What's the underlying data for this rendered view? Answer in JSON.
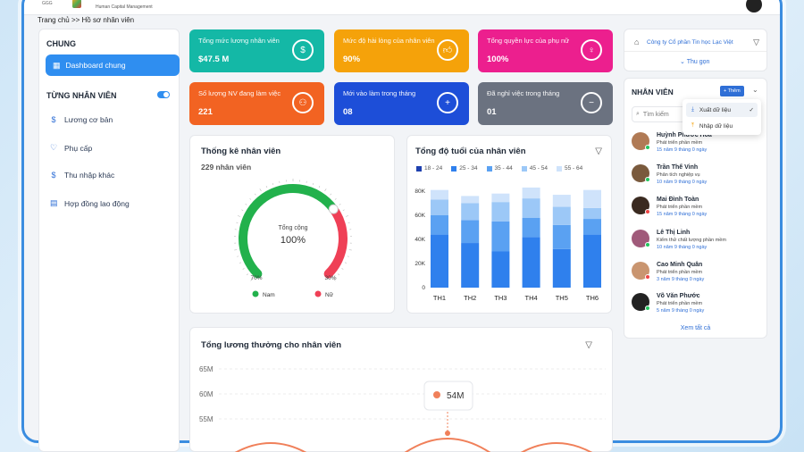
{
  "app": {
    "logo_small": "GGG",
    "logo_sub": "Human Capital Management"
  },
  "breadcrumb": "Trang chủ >> Hồ sơ nhân viên",
  "sidebar": {
    "section1": "CHUNG",
    "dashboard": "Dashboard chung",
    "section2": "TỪNG NHÂN VIÊN",
    "items": [
      {
        "label": "Lương cơ bản",
        "icon": "dollar-icon"
      },
      {
        "label": "Phụ cấp",
        "icon": "heart-icon"
      },
      {
        "label": "Thu nhập khác",
        "icon": "dollar-icon"
      },
      {
        "label": "Hợp đồng lao động",
        "icon": "document-icon"
      }
    ]
  },
  "cards": [
    {
      "label": "Tổng mức lương nhân viên",
      "value": "$47.5 M",
      "color": "#14b8a6",
      "icon": "dollar-circle-icon"
    },
    {
      "label": "Mức độ hài lòng của nhân viên",
      "value": "90%",
      "color": "#f5a20a",
      "icon": "thumbs-up-icon"
    },
    {
      "label": "Tổng quyền lực của phụ nữ",
      "value": "100%",
      "color": "#ec1f8e",
      "icon": "woman-icon"
    },
    {
      "label": "Số lượng NV đang làm việc",
      "value": "221",
      "color": "#f26322",
      "icon": "group-icon"
    },
    {
      "label": "Mới vào làm trong tháng",
      "value": "08",
      "color": "#1d4ed8",
      "icon": "add-user-icon"
    },
    {
      "label": "Đã nghỉ việc trong tháng",
      "value": "01",
      "color": "#6b7280",
      "icon": "remove-user-icon"
    }
  ],
  "stats": {
    "title": "Thống kê nhân viên",
    "subtitle": "229 nhân viên",
    "center_label": "Tổng cộng",
    "center_value": "100%",
    "left_pct": "70%",
    "right_pct": "30%",
    "legend_male": "Nam",
    "legend_female": "Nữ",
    "male_color": "#22b14c",
    "female_color": "#ef4056",
    "male_fraction": 0.7
  },
  "age_chart": {
    "title": "Tổng độ tuổi của nhân viên",
    "legend": [
      "18 - 24",
      "25 - 34",
      "35 - 44",
      "45 - 54",
      "55 - 64"
    ],
    "colors": [
      "#1e40af",
      "#2f80ed",
      "#5aa1f2",
      "#9cc8f7",
      "#cfe3fb"
    ],
    "ticks": [
      "80K",
      "60K",
      "40K",
      "20K",
      "0"
    ]
  },
  "chart_data": {
    "type": "bar",
    "title": "Tổng độ tuổi của nhân viên",
    "categories": [
      "TH1",
      "TH2",
      "TH3",
      "TH4",
      "TH5",
      "TH6"
    ],
    "ylim": [
      0,
      80000
    ],
    "series": [
      {
        "name": "18 - 24",
        "values": [
          0,
          0,
          0,
          0,
          0,
          0
        ]
      },
      {
        "name": "25 - 34",
        "values": [
          44000,
          37000,
          30000,
          42000,
          32000,
          44000
        ]
      },
      {
        "name": "35 - 44",
        "values": [
          16000,
          19000,
          25000,
          16000,
          20000,
          13000
        ]
      },
      {
        "name": "45 - 54",
        "values": [
          13000,
          14000,
          16000,
          16000,
          15000,
          9000
        ]
      },
      {
        "name": "55 - 64",
        "values": [
          8000,
          6000,
          7000,
          9000,
          10000,
          15000
        ]
      }
    ]
  },
  "salary": {
    "title": "Tổng lương thưởng cho nhân viên",
    "ticks": [
      "65M",
      "60M",
      "55M"
    ],
    "tooltip": "54M"
  },
  "company": {
    "name": "Công ty Cổ phần Tin học Lạc Việt",
    "collapse": "Thu gọn"
  },
  "employees": {
    "title": "NHÂN VIÊN",
    "add": "+ Thêm",
    "search_placeholder": "Tìm kiếm",
    "menu": [
      "Xuất dữ liệu",
      "Nhập dữ liệu"
    ],
    "see_all": "Xem tất cả",
    "list": [
      {
        "name": "Huỳnh Phước Hoà",
        "role": "Phát triển phần mềm",
        "time": "15 năm 9 tháng 0 ngày",
        "status": "#22c55e"
      },
      {
        "name": "Trần Thế Vinh",
        "role": "Phân tích nghiệp vụ",
        "time": "10 năm 9 tháng 0 ngày",
        "status": "#22c55e"
      },
      {
        "name": "Mai Đình Toàn",
        "role": "Phát triển phần mềm",
        "time": "15 năm 9 tháng 0 ngày",
        "status": "#ef4444"
      },
      {
        "name": "Lê Thị Linh",
        "role": "Kiểm thử chất lượng phần mềm",
        "time": "10 năm 9 tháng 0 ngày",
        "status": "#22c55e"
      },
      {
        "name": "Cao Minh Quân",
        "role": "Phát triển phần mềm",
        "time": "3 năm 9 tháng 0 ngày",
        "status": "#ef4444"
      },
      {
        "name": "Võ Văn Phước",
        "role": "Phát triển phần mềm",
        "time": "5 năm 9 tháng 0 ngày",
        "status": "#22c55e"
      }
    ]
  }
}
